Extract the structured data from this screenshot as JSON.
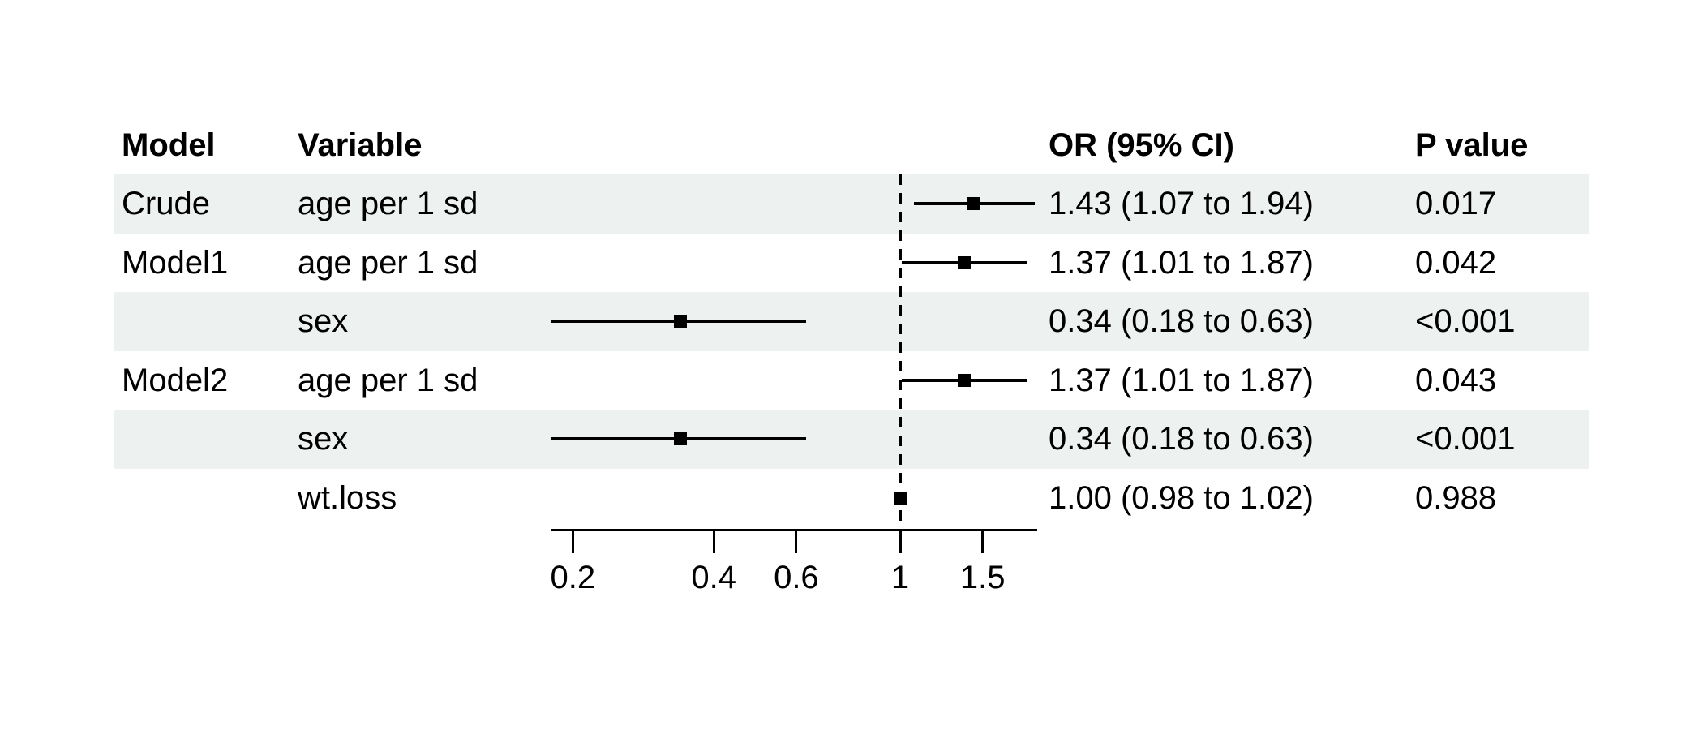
{
  "table": {
    "headers": {
      "model": "Model",
      "variable": "Variable",
      "or_ci": "OR (95% CI)",
      "p": "P value"
    }
  },
  "chart_data": {
    "type": "forest",
    "scale": "log10",
    "xlim": [
      0.18,
      1.96
    ],
    "ref_line": 1,
    "ticks": [
      0.2,
      0.4,
      0.6,
      1,
      1.5
    ],
    "tick_labels": [
      "0.2",
      "0.4",
      "0.6",
      "1",
      "1.5"
    ],
    "rows": [
      {
        "model": "Crude",
        "variable": "age per 1 sd",
        "or": 1.43,
        "lo": 1.07,
        "hi": 1.94,
        "or_ci": "1.43 (1.07 to 1.94)",
        "p": "0.017",
        "shaded": true
      },
      {
        "model": "Model1",
        "variable": "age per 1 sd",
        "or": 1.37,
        "lo": 1.01,
        "hi": 1.87,
        "or_ci": "1.37 (1.01 to 1.87)",
        "p": "0.042",
        "shaded": false
      },
      {
        "model": "",
        "variable": "sex",
        "or": 0.34,
        "lo": 0.18,
        "hi": 0.63,
        "or_ci": "0.34 (0.18 to 0.63)",
        "p": "<0.001",
        "shaded": true
      },
      {
        "model": "Model2",
        "variable": "age per 1 sd",
        "or": 1.37,
        "lo": 1.01,
        "hi": 1.87,
        "or_ci": "1.37 (1.01 to 1.87)",
        "p": "0.043",
        "shaded": false
      },
      {
        "model": "",
        "variable": "sex",
        "or": 0.34,
        "lo": 0.18,
        "hi": 0.63,
        "or_ci": "0.34 (0.18 to 0.63)",
        "p": "<0.001",
        "shaded": true
      },
      {
        "model": "",
        "variable": "wt.loss",
        "or": 1.0,
        "lo": 0.98,
        "hi": 1.02,
        "or_ci": "1.00 (0.98 to 1.02)",
        "p": "0.988",
        "shaded": false
      }
    ],
    "colors": {
      "marker": "#000000",
      "ci_line": "#000000",
      "stripe": "#edf1f0",
      "background": "#ffffff",
      "text": "#000000"
    }
  }
}
